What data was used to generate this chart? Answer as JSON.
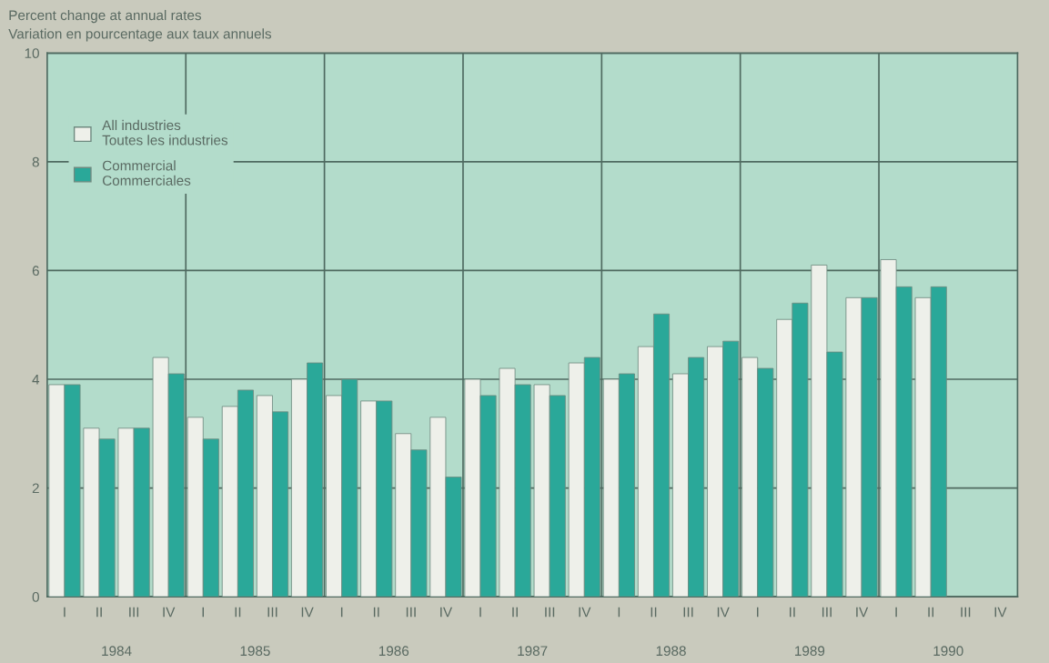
{
  "chart_data": {
    "type": "bar",
    "title": "Percent change at annual rates",
    "subtitle": "Variation en pourcentage aux taux annuels",
    "categories": [
      "I",
      "II",
      "III",
      "IV",
      "I",
      "II",
      "III",
      "IV",
      "I",
      "II",
      "III",
      "IV",
      "I",
      "II",
      "III",
      "IV",
      "I",
      "II",
      "III",
      "IV",
      "I",
      "II",
      "III",
      "IV",
      "I",
      "II",
      "III",
      "IV"
    ],
    "annotations": [
      "1984",
      "1985",
      "1986",
      "1987",
      "1988",
      "1989",
      "1990"
    ],
    "series": [
      {
        "name": "All industries\nToutes les industries",
        "color": "#eef0ea",
        "values": [
          3.9,
          3.1,
          3.1,
          4.4,
          3.3,
          3.5,
          3.7,
          4.0,
          3.7,
          3.6,
          3.0,
          3.3,
          4.0,
          4.2,
          3.9,
          4.3,
          4.0,
          4.6,
          4.1,
          4.6,
          4.4,
          5.1,
          6.1,
          5.5,
          6.2,
          5.5,
          null,
          null
        ]
      },
      {
        "name": "Commercial\nCommerciales",
        "color": "#2aa899",
        "values": [
          3.9,
          2.9,
          3.1,
          4.1,
          2.9,
          3.8,
          3.4,
          4.3,
          4.0,
          3.6,
          2.7,
          2.2,
          3.7,
          3.9,
          3.7,
          4.4,
          4.1,
          5.2,
          4.4,
          4.7,
          4.2,
          5.4,
          4.5,
          5.5,
          5.7,
          5.7,
          null,
          null
        ]
      }
    ],
    "ylim": [
      0,
      10
    ],
    "yticks": [
      0,
      2,
      4,
      6,
      8,
      10
    ],
    "grid": true,
    "legend": "top left"
  }
}
